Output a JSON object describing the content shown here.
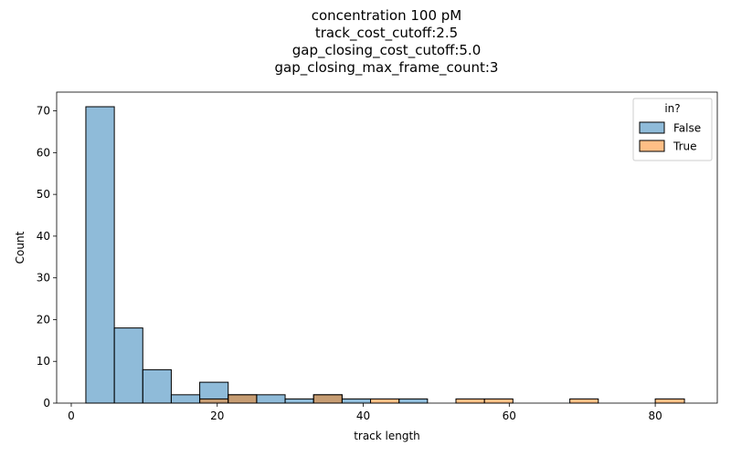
{
  "chart_data": {
    "type": "bar",
    "title_lines": [
      "concentration 100 pM",
      "track_cost_cutoff:2.5",
      "gap_closing_cost_cutoff:5.0",
      "gap_closing_max_frame_count:3"
    ],
    "xlabel": "track length",
    "ylabel": "Count",
    "xlim": [
      -2,
      88.5
    ],
    "ylim": [
      0,
      74.5
    ],
    "xticks": [
      0,
      20,
      40,
      60,
      80
    ],
    "yticks": [
      0,
      10,
      20,
      30,
      40,
      50,
      60,
      70
    ],
    "bin_edges": [
      2,
      5.9,
      9.8,
      13.7,
      17.6,
      21.5,
      25.4,
      29.3,
      33.2,
      37.1,
      41.0,
      44.9,
      48.8,
      52.7,
      56.6,
      60.5,
      64.4,
      68.3,
      72.2,
      76.1,
      80.0,
      84.0
    ],
    "legend": {
      "title": "in?",
      "location": "top-right"
    },
    "series": [
      {
        "name": "False",
        "color": "#1f77b4",
        "values": [
          71,
          18,
          8,
          2,
          5,
          2,
          2,
          1,
          2,
          1,
          0,
          1,
          0,
          0,
          0,
          0,
          0,
          0,
          0,
          0,
          0
        ]
      },
      {
        "name": "True",
        "color": "#ff7f0e",
        "values": [
          0,
          0,
          0,
          0,
          1,
          2,
          0,
          0,
          2,
          0,
          1,
          0,
          0,
          1,
          1,
          0,
          0,
          1,
          0,
          0,
          1
        ]
      }
    ]
  }
}
